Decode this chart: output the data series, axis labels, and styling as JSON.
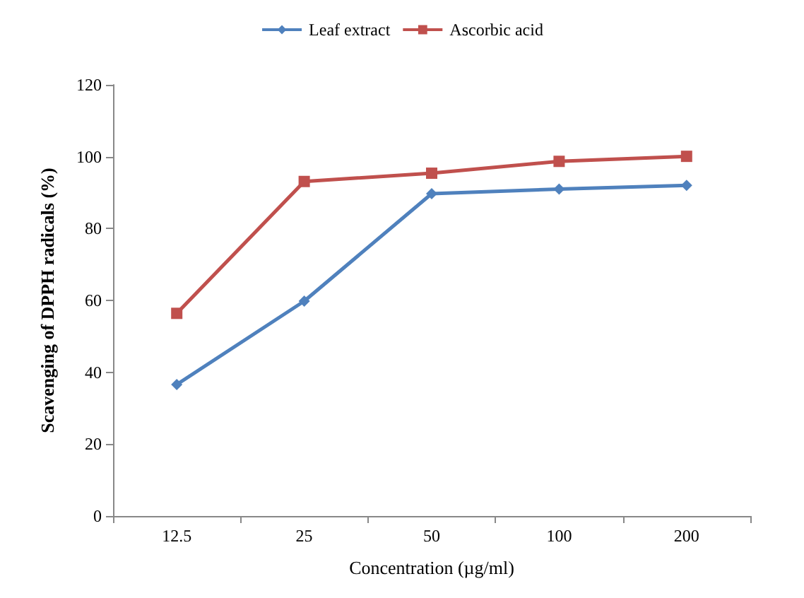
{
  "chart_data": {
    "type": "line",
    "xlabel": "Concentration (µg/ml)",
    "ylabel": "Scavenging of DPPH radicals (%)",
    "categories": [
      "12.5",
      "25",
      "50",
      "100",
      "200"
    ],
    "series": [
      {
        "name": "Leaf extract",
        "color": "#4f81bd",
        "marker": "diamond",
        "values": [
          36.6,
          59.8,
          89.7,
          91.0,
          92.0
        ]
      },
      {
        "name": "Ascorbic acid",
        "color": "#c0504d",
        "marker": "square",
        "values": [
          56.4,
          93.1,
          95.4,
          98.7,
          100.1
        ]
      }
    ],
    "ylim": [
      0,
      120
    ],
    "yticks": [
      0,
      20,
      40,
      60,
      80,
      100,
      120
    ],
    "grid": false,
    "legend": "top"
  }
}
